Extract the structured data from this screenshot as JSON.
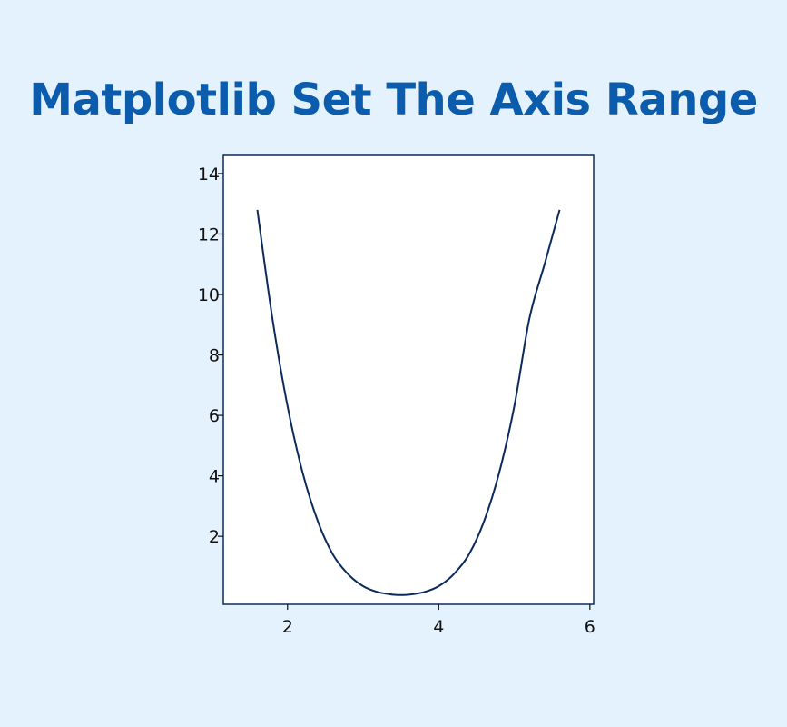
{
  "chart_data": {
    "type": "line",
    "title": "Matplotlib Set The Axis Range",
    "xlabel": "",
    "ylabel": "",
    "xlim": [
      1.15,
      6.05
    ],
    "ylim": [
      -0.25,
      14.6
    ],
    "xticks": [
      2,
      4,
      6
    ],
    "yticks": [
      2,
      4,
      6,
      8,
      10,
      12,
      14
    ],
    "grid": false,
    "series": [
      {
        "color": "#0b2a5c",
        "x": [
          1.6,
          1.8,
          2.0,
          2.2,
          2.4,
          2.6,
          2.8,
          3.0,
          3.2,
          3.4,
          3.5,
          3.6,
          3.8,
          4.0,
          4.2,
          4.4,
          4.6,
          4.8,
          5.0,
          5.2,
          5.4,
          5.6
        ],
        "y": [
          12.8,
          9.2,
          6.3,
          4.1,
          2.5,
          1.4,
          0.75,
          0.35,
          0.15,
          0.07,
          0.06,
          0.07,
          0.15,
          0.35,
          0.75,
          1.4,
          2.5,
          4.1,
          6.3,
          9.2,
          11.0,
          12.8
        ]
      }
    ]
  }
}
